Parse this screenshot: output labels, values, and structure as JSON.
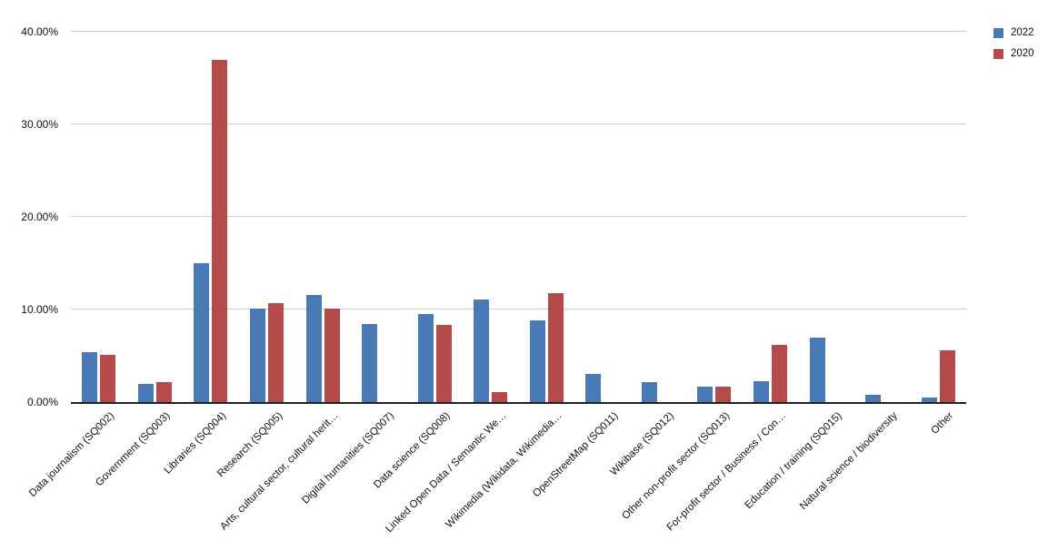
{
  "chart_data": {
    "type": "bar",
    "title": "",
    "xlabel": "",
    "ylabel": "",
    "categories": [
      "Data journalism (SQ002)",
      "Government (SQ003)",
      "Libraries (SQ004)",
      "Research (SQ005)",
      "Arts, cultural sector, cultural herit…",
      "Digital humanities (SQ007)",
      "Data science (SQ008)",
      "Linked Open Data / Semantic We…",
      "Wikimedia (Wikidata, Wikimedia…",
      "OpenStreetMap (SQ011)",
      "Wikibase (SQ012)",
      "Other non-profit sector (SQ013)",
      "For-profit sector / Business / Con…",
      "Education / training (SQ015)",
      "Natural science / biodiversity",
      "Other"
    ],
    "series": [
      {
        "name": "2022",
        "color": "#4a7ab5",
        "values": [
          5.4,
          2.0,
          15.0,
          10.1,
          11.6,
          8.4,
          9.5,
          11.1,
          8.8,
          3.0,
          2.2,
          1.7,
          2.3,
          7.0,
          0.8,
          0.5
        ]
      },
      {
        "name": "2020",
        "color": "#b44a4a",
        "values": [
          5.1,
          2.2,
          37.0,
          10.7,
          10.1,
          0,
          8.3,
          1.1,
          11.8,
          0,
          0,
          1.7,
          6.2,
          0,
          0,
          5.6
        ]
      }
    ],
    "ylim": [
      0,
      40
    ],
    "ytick_step": 10,
    "ytick_labels": [
      "0.00%",
      "10.00%",
      "20.00%",
      "30.00%",
      "40.00%"
    ],
    "grid": "horizontal",
    "legend_position": "top-right",
    "value_format": "percent"
  },
  "colors": {
    "background": "#ffffff",
    "gridline": "#cccccc",
    "axis_line": "#212121",
    "text": "#111111"
  }
}
